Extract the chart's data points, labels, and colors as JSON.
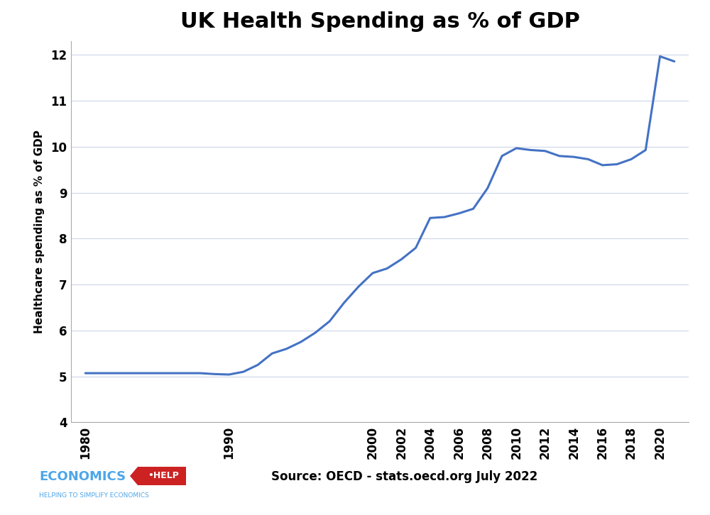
{
  "title": "UK Health Spending as % of GDP",
  "ylabel": "Healthcare spending as % of GDP",
  "years": [
    1980,
    1981,
    1982,
    1983,
    1984,
    1985,
    1986,
    1987,
    1988,
    1989,
    1990,
    1991,
    1992,
    1993,
    1994,
    1995,
    1996,
    1997,
    1998,
    1999,
    2000,
    2001,
    2002,
    2003,
    2004,
    2005,
    2006,
    2007,
    2008,
    2009,
    2010,
    2011,
    2012,
    2013,
    2014,
    2015,
    2016,
    2017,
    2018,
    2019,
    2020,
    2021
  ],
  "values": [
    5.07,
    5.07,
    5.07,
    5.07,
    5.07,
    5.07,
    5.07,
    5.07,
    5.07,
    5.05,
    5.04,
    5.1,
    5.25,
    5.5,
    5.6,
    5.75,
    5.95,
    6.2,
    6.6,
    6.95,
    7.25,
    7.35,
    7.55,
    7.8,
    8.45,
    8.47,
    8.55,
    8.65,
    9.1,
    9.8,
    9.97,
    9.93,
    9.91,
    9.8,
    9.78,
    9.73,
    9.6,
    9.62,
    9.73,
    9.93,
    11.97,
    11.86
  ],
  "line_color": "#4472C4",
  "line_width": 2.2,
  "xlim_left": 1979,
  "xlim_right": 2022,
  "ylim_bottom": 4,
  "ylim_top": 12.3,
  "yticks": [
    4,
    5,
    6,
    7,
    8,
    9,
    10,
    11,
    12
  ],
  "xticks": [
    1980,
    1990,
    2000,
    2002,
    2004,
    2006,
    2008,
    2010,
    2012,
    2014,
    2016,
    2018,
    2020
  ],
  "source_text": "Source: OECD - stats.oecd.org July 2022",
  "background_color": "#ffffff",
  "grid_color": "#d0d8e8",
  "title_fontsize": 22,
  "axis_label_fontsize": 11,
  "tick_fontsize": 12
}
